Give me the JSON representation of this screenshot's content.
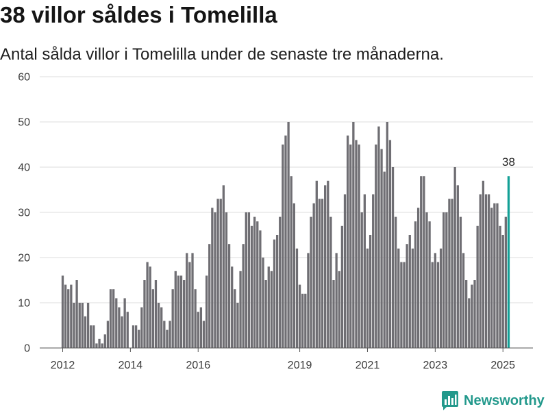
{
  "chart_data": {
    "type": "bar",
    "title": "38 villor såldes i Tomelilla",
    "subtitle": "Antal sålda villor i Tomelilla under de senaste tre månaderna.",
    "xlabel": "",
    "ylabel": "",
    "ylim": [
      0,
      60
    ],
    "yticks": [
      0,
      10,
      20,
      30,
      40,
      50,
      60
    ],
    "xticks": [
      {
        "label": "2012",
        "at": "2012-01"
      },
      {
        "label": "2014",
        "at": "2014-01"
      },
      {
        "label": "2016",
        "at": "2016-01"
      },
      {
        "label": "2019",
        "at": "2019-01"
      },
      {
        "label": "2021",
        "at": "2021-01"
      },
      {
        "label": "2023",
        "at": "2023-01"
      },
      {
        "label": "2025",
        "at": "2025-01"
      }
    ],
    "grid": true,
    "categories": [
      "2012-01",
      "2012-02",
      "2012-03",
      "2012-04",
      "2012-05",
      "2012-06",
      "2012-07",
      "2012-08",
      "2012-09",
      "2012-10",
      "2012-11",
      "2012-12",
      "2013-01",
      "2013-02",
      "2013-03",
      "2013-04",
      "2013-05",
      "2013-06",
      "2013-07",
      "2013-08",
      "2013-09",
      "2013-10",
      "2013-11",
      "2013-12",
      "2014-01",
      "2014-02",
      "2014-03",
      "2014-04",
      "2014-05",
      "2014-06",
      "2014-07",
      "2014-08",
      "2014-09",
      "2014-10",
      "2014-11",
      "2014-12",
      "2015-01",
      "2015-02",
      "2015-03",
      "2015-04",
      "2015-05",
      "2015-06",
      "2015-07",
      "2015-08",
      "2015-09",
      "2015-10",
      "2015-11",
      "2015-12",
      "2016-01",
      "2016-02",
      "2016-03",
      "2016-04",
      "2016-05",
      "2016-06",
      "2016-07",
      "2016-08",
      "2016-09",
      "2016-10",
      "2016-11",
      "2016-12",
      "2017-01",
      "2017-02",
      "2017-03",
      "2017-04",
      "2017-05",
      "2017-06",
      "2017-07",
      "2017-08",
      "2017-09",
      "2017-10",
      "2017-11",
      "2017-12",
      "2018-01",
      "2018-02",
      "2018-03",
      "2018-04",
      "2018-05",
      "2018-06",
      "2018-07",
      "2018-08",
      "2018-09",
      "2018-10",
      "2018-11",
      "2018-12",
      "2019-01",
      "2019-02",
      "2019-03",
      "2019-04",
      "2019-05",
      "2019-06",
      "2019-07",
      "2019-08",
      "2019-09",
      "2019-10",
      "2019-11",
      "2019-12",
      "2020-01",
      "2020-02",
      "2020-03",
      "2020-04",
      "2020-05",
      "2020-06",
      "2020-07",
      "2020-08",
      "2020-09",
      "2020-10",
      "2020-11",
      "2020-12",
      "2021-01",
      "2021-02",
      "2021-03",
      "2021-04",
      "2021-05",
      "2021-06",
      "2021-07",
      "2021-08",
      "2021-09",
      "2021-10",
      "2021-11",
      "2021-12",
      "2022-01",
      "2022-02",
      "2022-03",
      "2022-04",
      "2022-05",
      "2022-06",
      "2022-07",
      "2022-08",
      "2022-09",
      "2022-10",
      "2022-11",
      "2022-12",
      "2023-01",
      "2023-02",
      "2023-03",
      "2023-04",
      "2023-05",
      "2023-06",
      "2023-07",
      "2023-08",
      "2023-09",
      "2023-10",
      "2023-11",
      "2023-12",
      "2024-01",
      "2024-02",
      "2024-03",
      "2024-04",
      "2024-05",
      "2024-06",
      "2024-07",
      "2024-08",
      "2024-09",
      "2024-10",
      "2024-11",
      "2024-12",
      "2025-01",
      "2025-02",
      "2025-03"
    ],
    "values": [
      16,
      14,
      13,
      14,
      10,
      15,
      10,
      10,
      7,
      10,
      5,
      5,
      1,
      2,
      1,
      3,
      6,
      13,
      13,
      11,
      9,
      7,
      11,
      8,
      0,
      5,
      5,
      4,
      9,
      15,
      19,
      18,
      13,
      15,
      10,
      9,
      6,
      4,
      6,
      13,
      17,
      16,
      16,
      15,
      21,
      19,
      21,
      13,
      8,
      9,
      6,
      16,
      23,
      31,
      30,
      33,
      33,
      36,
      30,
      23,
      18,
      13,
      10,
      17,
      23,
      30,
      30,
      27,
      29,
      28,
      26,
      20,
      15,
      18,
      17,
      24,
      25,
      29,
      45,
      47,
      50,
      38,
      32,
      22,
      14,
      12,
      12,
      21,
      29,
      32,
      37,
      33,
      33,
      36,
      37,
      29,
      15,
      21,
      17,
      27,
      34,
      47,
      45,
      50,
      46,
      45,
      30,
      34,
      22,
      25,
      34,
      45,
      49,
      44,
      39,
      50,
      46,
      40,
      29,
      22,
      19,
      19,
      23,
      25,
      22,
      28,
      31,
      38,
      38,
      30,
      28,
      19,
      21,
      19,
      22,
      30,
      30,
      33,
      33,
      40,
      36,
      29,
      21,
      15,
      11,
      14,
      15,
      27,
      34,
      37,
      34,
      34,
      31,
      32,
      32,
      27,
      25,
      29,
      38
    ],
    "highlight": "2025-03",
    "annotations": [
      {
        "text": "38",
        "at": "2025-03",
        "value": 38
      }
    ],
    "colors": {
      "bar": "#6f6e73",
      "highlight": "#13a096",
      "grid": "#dcdcdc",
      "axis": "#555555"
    }
  },
  "branding": {
    "name": "Newsworthy",
    "icon": "bar-chart-icon",
    "color": "#23998c"
  }
}
